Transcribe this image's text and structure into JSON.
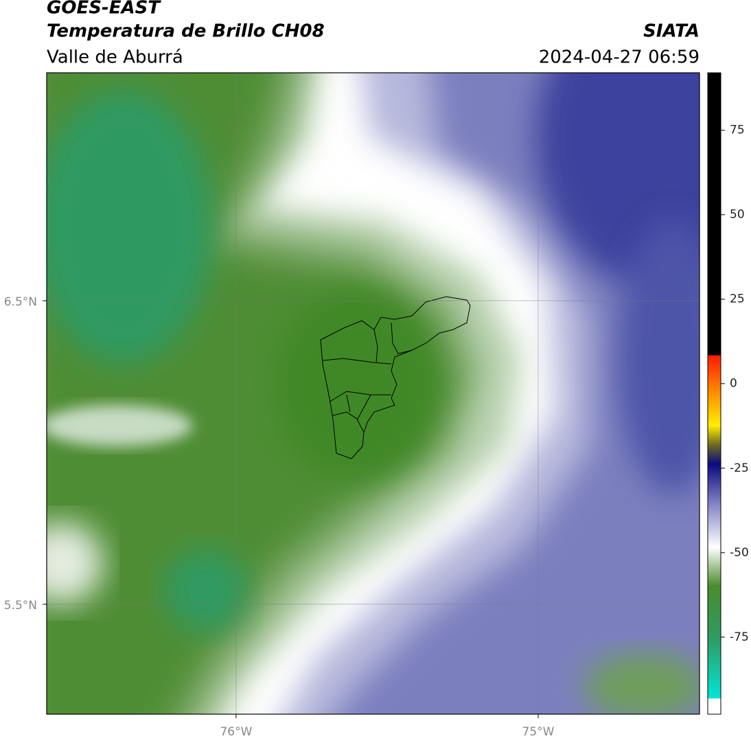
{
  "header": {
    "title": "GOES-EAST",
    "subtitle": "Temperatura de Brillo CH08",
    "region": "Valle de Aburrá",
    "source": "SIATA",
    "timestamp": "2024-04-27 06:59"
  },
  "map": {
    "xlim": [
      -76.627,
      -74.466
    ],
    "ylim": [
      5.138,
      7.251
    ],
    "xticks": [
      {
        "value": -76,
        "label": "76°W"
      },
      {
        "value": -75,
        "label": "75°W"
      }
    ],
    "yticks": [
      {
        "value": 6.5,
        "label": "6.5°N"
      },
      {
        "value": 5.5,
        "label": "5.5°N"
      }
    ],
    "grid": true
  },
  "colorbar": {
    "lim": [
      -97.8,
      92
    ],
    "ticks": [
      75,
      50,
      25,
      0,
      -25,
      -50,
      -75
    ]
  }
}
